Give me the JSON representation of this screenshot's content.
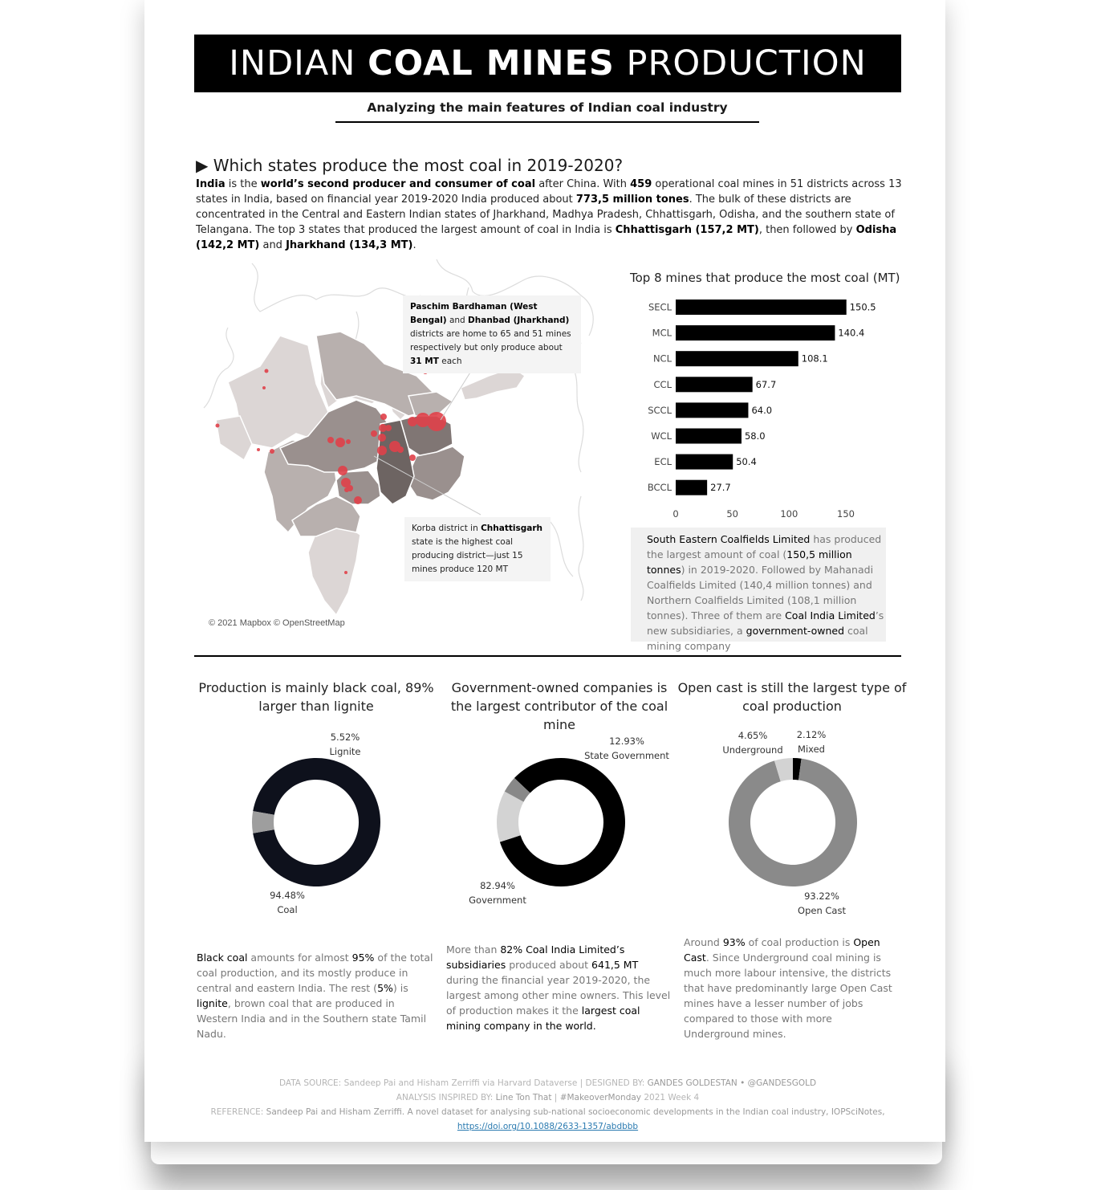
{
  "header": {
    "title_pre": "INDIAN",
    "title_bold": "COAL MINES",
    "title_post": "PRODUCTION",
    "subtitle": "Analyzing the main features of Indian coal industry"
  },
  "section1": {
    "question": "▶ Which states produce the most coal in 2019-2020?",
    "intro": [
      {
        "t": "India",
        "b": true
      },
      {
        "t": " is the "
      },
      {
        "t": "world’s second producer and consumer of coal",
        "b": true
      },
      {
        "t": " after China. With "
      },
      {
        "t": "459",
        "b": true
      },
      {
        "t": " operational coal mines in 51 districts across 13 states in India, based on financial year 2019-2020 India produced about "
      },
      {
        "t": "773,5 million tones",
        "b": true
      },
      {
        "t": ". The bulk of these districts are concentrated in the Central and Eastern Indian states of Jharkhand, Madhya Pradesh, Chhattisgarh, Odisha, and the southern state of Telangana. The top 3 states that produced the largest amount of coal in India is "
      },
      {
        "t": "Chhattisgarh (157,2 MT)",
        "b": true
      },
      {
        "t": ", then followed by "
      },
      {
        "t": "Odisha (142,2 MT)",
        "b": true
      },
      {
        "t": " and "
      },
      {
        "t": "Jharkhand (134,3 MT)",
        "b": true
      },
      {
        "t": "."
      }
    ]
  },
  "map": {
    "callout_top": [
      {
        "t": "Paschim Bardhaman (West Bengal)",
        "b": true
      },
      {
        "t": " and "
      },
      {
        "t": "Dhanbad (Jharkhand)",
        "b": true
      },
      {
        "t": " districts are home to 65 and 51 mines respectively but only produce about "
      },
      {
        "t": "31 MT",
        "b": true
      },
      {
        "t": " each"
      }
    ],
    "callout_bottom": [
      {
        "t": "Korba district in "
      },
      {
        "t": "Chhattisgarh",
        "b": true
      },
      {
        "t": " state is the highest coal producing district—just 15 mines produce 120 MT"
      }
    ],
    "copyright": "© 2021 Mapbox © OpenStreetMap",
    "mine_color": "#e0414a"
  },
  "chart_data": [
    {
      "type": "bar",
      "orientation": "horizontal",
      "title": "Top 8 mines that produce the most coal (MT)",
      "categories": [
        "SECL",
        "MCL",
        "NCL",
        "CCL",
        "SCCL",
        "WCL",
        "ECL",
        "BCCL"
      ],
      "values": [
        150.5,
        140.4,
        108.1,
        67.7,
        64.0,
        58.0,
        50.4,
        27.7
      ],
      "value_labels": [
        "150.5",
        "140.4",
        "108.1",
        "67.7",
        "64.0",
        "58.0",
        "50.4",
        "27.7"
      ],
      "xticks": [
        "0",
        "50",
        "100",
        "150"
      ],
      "xlim": [
        0,
        150
      ],
      "color": "#000000"
    },
    {
      "type": "pie",
      "donut": true,
      "title": "Production is mainly black coal, 89% larger than lignite",
      "slices": [
        {
          "name": "Coal",
          "value": 94.48,
          "label": "94.48%",
          "color": "#0e111c"
        },
        {
          "name": "Lignite",
          "value": 5.52,
          "label": "5.52%",
          "color": "#9e9e9e"
        }
      ]
    },
    {
      "type": "pie",
      "donut": true,
      "title": "Government-owned companies is the largest contributor of the coal mine",
      "slices": [
        {
          "name": "Government",
          "value": 82.94,
          "label": "82.94%",
          "color": "#000000"
        },
        {
          "name": "State Government",
          "value": 12.93,
          "label": "12.93%",
          "color": "#d3d3d3"
        },
        {
          "name": "",
          "value": 4.13,
          "label": "",
          "color": "#888888"
        }
      ]
    },
    {
      "type": "pie",
      "donut": true,
      "title": "Open cast is still the largest type of coal production",
      "slices": [
        {
          "name": "Mixed",
          "value": 2.12,
          "label": "2.12%",
          "color": "#000000"
        },
        {
          "name": "Open Cast",
          "value": 93.22,
          "label": "93.22%",
          "color": "#8a8a8a"
        },
        {
          "name": "Underground",
          "value": 4.65,
          "label": "4.65%",
          "color": "#d3d3d3"
        }
      ]
    }
  ],
  "notes": {
    "bar_note": [
      {
        "t": "South Eastern Coalfields Limited",
        "b": true
      },
      {
        "t": " has produced the largest amount of coal ("
      },
      {
        "t": "150,5 million tonnes",
        "b": true
      },
      {
        "t": ") in 2019-2020. Followed by Mahanadi Coalfields Limited (140,4 million tonnes) and Northern Coalfields Limited (108,1 million tonnes). Three of them are "
      },
      {
        "t": "Coal India Limited",
        "b": true
      },
      {
        "t": "’s new subsidiaries, a "
      },
      {
        "t": "government-owned",
        "b": true
      },
      {
        "t": " coal mining company"
      }
    ],
    "coal_note": [
      {
        "t": "Black coal",
        "b": true
      },
      {
        "t": " amounts for almost "
      },
      {
        "t": "95%",
        "b": true
      },
      {
        "t": " of the total coal production, and its mostly produce in central and eastern India. The rest ("
      },
      {
        "t": "5%",
        "b": true
      },
      {
        "t": ") is "
      },
      {
        "t": "lignite",
        "b": true
      },
      {
        "t": ", brown coal that are produced in Western India and in the Southern state Tamil Nadu."
      }
    ],
    "gov_note": [
      {
        "t": "More than "
      },
      {
        "t": "82% Coal India Limited’s subsidiaries",
        "b": true
      },
      {
        "t": " produced about "
      },
      {
        "t": "641,5 MT",
        "b": true
      },
      {
        "t": " during the financial year 2019-2020, the largest among other mine owners. This level of production makes it the "
      },
      {
        "t": "largest coal mining company in the world.",
        "b": true
      }
    ],
    "open_note": [
      {
        "t": "Around "
      },
      {
        "t": "93%",
        "b": true
      },
      {
        "t": " of coal production is "
      },
      {
        "t": "Open Cast",
        "b": true
      },
      {
        "t": ". Since Underground coal mining is much more labour intensive, the districts that have predominantly large Open Cast mines have a lesser number of jobs compared to those with more Underground mines."
      }
    ]
  },
  "footer": {
    "line1": [
      {
        "t": "DATA SOURCE: "
      },
      {
        "t": "Sandeep Pai and Hisham Zerriffi via Harvard Dataverse"
      },
      {
        "t": "  |  DESIGNED BY: "
      },
      {
        "t": "GANDES GOLDESTAN • @GANDESGOLD",
        "b": true
      }
    ],
    "line2": [
      {
        "t": "ANALYSIS INSPIRED BY: "
      },
      {
        "t": "Line Ton That",
        "b": true
      },
      {
        "t": "  |  "
      },
      {
        "t": "#MakeoverMonday",
        "b": true
      },
      {
        "t": " 2021 Week 4"
      }
    ],
    "line3": [
      {
        "t": "REFERENCE: "
      },
      {
        "t": "Sandeep Pai and Hisham Zerriffi. A novel dataset for analysing sub-national socioeconomic developments in the Indian coal industry, IOPSciNotes,",
        "b": true
      }
    ],
    "link": "https://doi.org/10.1088/2633-1357/abdbbb"
  }
}
